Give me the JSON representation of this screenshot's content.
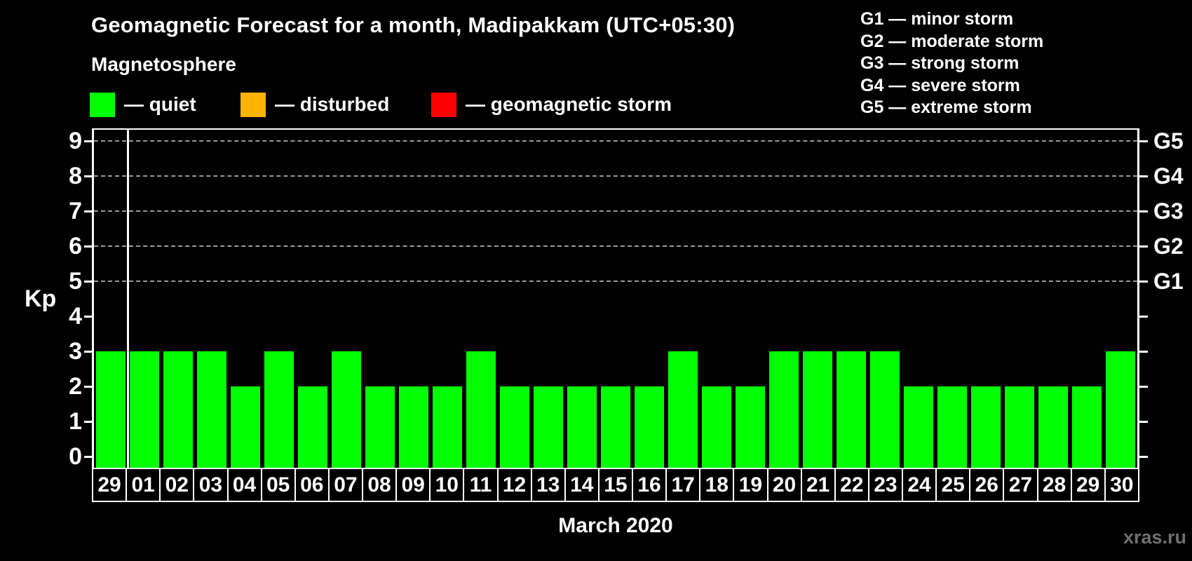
{
  "header": {
    "title": "Geomagnetic Forecast for a month, Madipakkam (UTC+05:30)"
  },
  "magnetosphere_legend": {
    "label": "Magnetosphere",
    "items": [
      {
        "key": "quiet",
        "color": "#00ff00",
        "label": "— quiet"
      },
      {
        "key": "disturbed",
        "color": "#ffb400",
        "label": "— disturbed"
      },
      {
        "key": "storm",
        "color": "#ff0000",
        "label": "— geomagnetic storm"
      }
    ]
  },
  "g_scale_legend": {
    "items": [
      "G1 — minor storm",
      "G2 — moderate storm",
      "G3 — strong storm",
      "G4 — severe storm",
      "G5 — extreme storm"
    ]
  },
  "chart_data": {
    "type": "bar",
    "title": "Geomagnetic Forecast for a month, Madipakkam (UTC+05:30)",
    "categories": [
      "29",
      "01",
      "02",
      "03",
      "04",
      "05",
      "06",
      "07",
      "08",
      "09",
      "10",
      "11",
      "12",
      "13",
      "14",
      "15",
      "16",
      "17",
      "18",
      "19",
      "20",
      "21",
      "22",
      "23",
      "24",
      "25",
      "26",
      "27",
      "28",
      "29",
      "30"
    ],
    "values": [
      3,
      3,
      3,
      3,
      2,
      3,
      2,
      3,
      2,
      2,
      2,
      3,
      2,
      2,
      2,
      2,
      2,
      3,
      2,
      2,
      3,
      3,
      3,
      3,
      2,
      2,
      2,
      2,
      2,
      2,
      3
    ],
    "ylabel": "Kp",
    "xlabel": "March 2020",
    "ylim": [
      0,
      9
    ],
    "y_ticks": [
      0,
      1,
      2,
      3,
      4,
      5,
      6,
      7,
      8,
      9
    ],
    "grid_levels": [
      5,
      6,
      7,
      8,
      9
    ],
    "right_axis_labels": [
      {
        "label": "G1",
        "kp": 5
      },
      {
        "label": "G2",
        "kp": 6
      },
      {
        "label": "G3",
        "kp": 7
      },
      {
        "label": "G4",
        "kp": 8
      },
      {
        "label": "G5",
        "kp": 9
      }
    ],
    "separator_after_index": 0,
    "bar_color_rules": {
      "quiet_max": 3,
      "disturbed_max": 4
    },
    "colors": {
      "quiet": "#00ff00",
      "disturbed": "#ffb400",
      "storm": "#ff0000"
    },
    "grid": true,
    "legend_position": "top"
  },
  "footer": {
    "month_label": "March 2020",
    "watermark": "xras.ru"
  }
}
